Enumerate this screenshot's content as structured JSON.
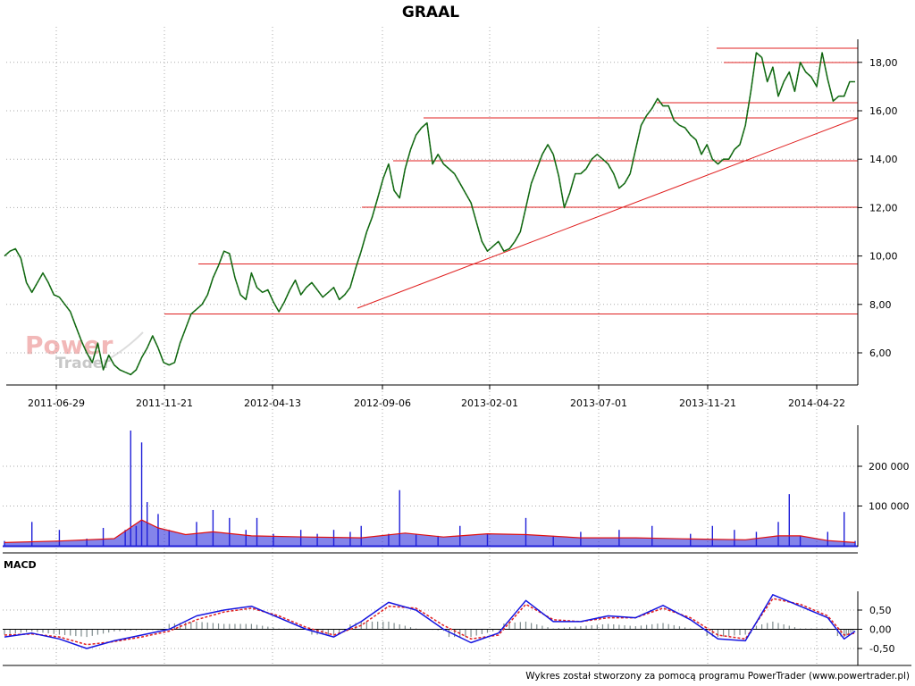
{
  "chart_data": [
    {
      "type": "line",
      "title": "GRAAL",
      "x_tick_labels": [
        "2011-06-29",
        "2011-11-21",
        "2012-04-13",
        "2012-09-06",
        "2013-02-01",
        "2013-07-01",
        "2013-11-21",
        "2014-04-22"
      ],
      "y_ticks": [
        "6,00",
        "8,00",
        "10,00",
        "12,00",
        "14,00",
        "16,00",
        "18,00"
      ],
      "ylim": [
        5.0,
        19.0
      ],
      "grid": true,
      "series": [
        {
          "color": "#1a7a1a",
          "x": [
            0,
            2,
            4,
            6,
            8,
            10,
            12,
            14,
            16,
            18,
            20,
            22,
            24,
            26,
            28,
            30,
            32,
            34,
            36,
            38,
            40,
            42,
            44,
            46,
            48,
            50,
            52,
            54,
            56,
            58,
            60,
            62,
            64,
            66,
            68,
            70,
            72,
            74,
            76,
            78,
            80,
            82,
            84,
            86,
            88,
            90,
            92,
            94,
            96,
            98,
            100,
            102,
            104,
            106,
            108,
            110,
            112,
            114,
            116,
            118,
            120,
            122,
            124,
            126,
            128,
            130,
            132,
            134,
            136,
            138,
            140,
            142,
            144,
            146,
            148,
            150,
            152,
            154,
            156,
            158,
            160,
            162,
            164,
            166,
            168,
            170,
            172,
            174,
            176,
            178,
            180,
            182,
            184,
            186,
            188,
            190,
            192,
            194,
            196,
            198,
            200
          ],
          "values": [
            10.0,
            10.2,
            10.3,
            9.9,
            8.9,
            8.5,
            8.9,
            9.3,
            8.9,
            8.4,
            8.3,
            8.0,
            7.7,
            7.1,
            6.5,
            6.0,
            5.6,
            6.4,
            5.3,
            5.9,
            5.5,
            5.3,
            5.2,
            5.1,
            5.3,
            5.8,
            6.2,
            6.7,
            6.2,
            5.6,
            5.5,
            5.6,
            6.4,
            7.0,
            7.6,
            7.8,
            8.0,
            8.4,
            9.1,
            9.6,
            10.2,
            10.1,
            9.1,
            8.4,
            8.2,
            9.3,
            8.7,
            8.5,
            8.6,
            8.1,
            7.7,
            8.1,
            8.6,
            9.0,
            8.4,
            8.7,
            8.9,
            8.6,
            8.3,
            8.5,
            8.7,
            8.2,
            8.4,
            8.7,
            9.5,
            10.2,
            11.0,
            11.6,
            12.4,
            13.2,
            13.8,
            12.7,
            12.4,
            13.6,
            14.4,
            15.0,
            15.3,
            15.5,
            13.8,
            14.2,
            13.8,
            13.6,
            13.4,
            13.0,
            12.6,
            12.2,
            11.4,
            10.6,
            10.2,
            10.4,
            10.6,
            10.2,
            10.3,
            10.6,
            11.0,
            12.0,
            13.0,
            13.6,
            14.2,
            14.6,
            14.2
          ]
        },
        {
          "color": "#1a7a1a",
          "x": [
            200,
            202,
            204,
            206,
            208,
            210,
            212,
            214,
            216,
            218,
            220,
            222,
            224,
            226,
            228,
            230,
            232,
            234,
            236,
            238,
            240,
            242,
            244,
            246,
            248,
            250,
            252,
            254,
            256,
            258,
            260,
            262,
            264,
            266,
            268,
            270,
            272,
            274,
            276,
            278,
            280,
            282,
            284,
            286,
            288,
            290,
            292,
            294,
            296,
            298,
            300,
            302,
            304,
            306,
            308,
            310
          ],
          "values": [
            14.2,
            13.3,
            12.0,
            12.6,
            13.4,
            13.4,
            13.6,
            14.0,
            14.2,
            14.0,
            13.8,
            13.4,
            12.8,
            13.0,
            13.4,
            14.4,
            15.4,
            15.8,
            16.1,
            16.5,
            16.2,
            16.2,
            15.6,
            15.4,
            15.3,
            15.0,
            14.8,
            14.2,
            14.6,
            14.0,
            13.8,
            14.0,
            14.0,
            14.4,
            14.6,
            15.4,
            16.8,
            18.4,
            18.2,
            17.2,
            17.8,
            16.6,
            17.2,
            17.6,
            16.8,
            18.0,
            17.6,
            17.4,
            17.0,
            18.4,
            17.3,
            16.4,
            16.6,
            16.6,
            17.2,
            17.2
          ]
        }
      ]
    },
    {
      "type": "bar",
      "y_ticks": [
        "100 000",
        "200 000"
      ],
      "ylim": [
        0,
        290000
      ],
      "series": [
        {
          "color": "#1f1fd8",
          "x": [
            0,
            10,
            20,
            30,
            36,
            44,
            46,
            48,
            50,
            52,
            56,
            60,
            70,
            76,
            82,
            88,
            92,
            98,
            108,
            114,
            120,
            126,
            130,
            140,
            144,
            150,
            158,
            166,
            176,
            190,
            200,
            210,
            224,
            236,
            250,
            258,
            266,
            274,
            282,
            286,
            290,
            300,
            306,
            310
          ],
          "values": [
            12000,
            60000,
            40000,
            18000,
            45000,
            40000,
            290000,
            50000,
            260000,
            110000,
            80000,
            40000,
            60000,
            90000,
            70000,
            40000,
            70000,
            30000,
            40000,
            30000,
            40000,
            35000,
            50000,
            30000,
            140000,
            30000,
            25000,
            50000,
            30000,
            70000,
            25000,
            35000,
            40000,
            50000,
            30000,
            50000,
            40000,
            35000,
            60000,
            130000,
            25000,
            35000,
            85000,
            12000
          ]
        },
        {
          "color": "#e01010",
          "x": [
            0,
            20,
            40,
            50,
            56,
            66,
            76,
            90,
            110,
            130,
            146,
            160,
            176,
            190,
            210,
            230,
            250,
            270,
            282,
            290,
            300,
            310
          ],
          "values": [
            8000,
            12000,
            18000,
            65000,
            45000,
            28000,
            35000,
            25000,
            22000,
            20000,
            32000,
            22000,
            30000,
            28000,
            20000,
            20000,
            17000,
            15000,
            25000,
            25000,
            13000,
            8000
          ]
        }
      ]
    },
    {
      "type": "line",
      "title": "MACD",
      "y_ticks": [
        "-0,50",
        "0,00",
        "0,50"
      ],
      "ylim": [
        -0.75,
        1.05
      ],
      "series": [
        {
          "color": "#1515e0",
          "x": [
            0,
            10,
            20,
            30,
            40,
            50,
            60,
            70,
            80,
            90,
            100,
            110,
            120,
            130,
            140,
            150,
            160,
            170,
            180,
            190,
            200,
            210,
            220,
            230,
            240,
            250,
            260,
            270,
            280,
            290,
            300,
            306,
            310
          ],
          "values": [
            -0.2,
            -0.1,
            -0.25,
            -0.5,
            -0.3,
            -0.15,
            0.0,
            0.35,
            0.5,
            0.6,
            0.3,
            0.0,
            -0.2,
            0.2,
            0.7,
            0.5,
            0.0,
            -0.35,
            -0.1,
            0.75,
            0.2,
            0.2,
            0.35,
            0.3,
            0.62,
            0.25,
            -0.25,
            -0.3,
            0.9,
            0.6,
            0.3,
            -0.25,
            -0.05
          ]
        },
        {
          "color": "#e02020",
          "x": [
            0,
            10,
            20,
            30,
            40,
            50,
            60,
            70,
            80,
            90,
            100,
            110,
            120,
            130,
            140,
            150,
            160,
            170,
            180,
            190,
            200,
            210,
            220,
            230,
            240,
            250,
            260,
            270,
            280,
            290,
            300,
            306,
            310
          ],
          "values": [
            -0.15,
            -0.12,
            -0.2,
            -0.4,
            -0.32,
            -0.2,
            -0.05,
            0.25,
            0.45,
            0.55,
            0.35,
            0.05,
            -0.15,
            0.1,
            0.6,
            0.55,
            0.1,
            -0.25,
            -0.15,
            0.65,
            0.25,
            0.2,
            0.3,
            0.3,
            0.55,
            0.3,
            -0.15,
            -0.25,
            0.8,
            0.65,
            0.35,
            -0.15,
            -0.1
          ]
        }
      ]
    }
  ],
  "branding": {
    "watermark_word1": "Power",
    "watermark_word2": "Trader",
    "footer": "Wykres został stworzony za pomocą programu PowerTrader (www.powertrader.pl)"
  }
}
